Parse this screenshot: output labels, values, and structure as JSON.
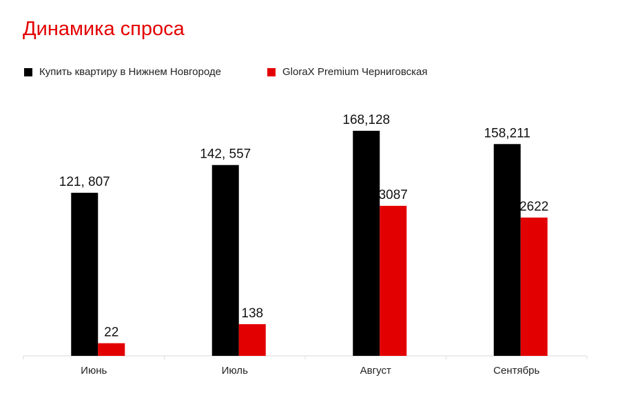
{
  "chart_data": {
    "type": "bar",
    "title": "Динамика спроса",
    "categories": [
      "Июнь",
      "Июль",
      "Август",
      "Сентябрь"
    ],
    "series": [
      {
        "name": "Купить квартиру в Нижнем Новгороде",
        "color": "#000000",
        "values": [
          121807,
          142557,
          168128,
          158211
        ],
        "labels": [
          "121, 807",
          "142, 557",
          "168,128",
          "158,211"
        ]
      },
      {
        "name": "GloraX Premium Черниговская",
        "color": "#e30000",
        "values": [
          22,
          138,
          3087,
          2622
        ],
        "labels": [
          "22",
          "138",
          "3087",
          "2622"
        ]
      }
    ],
    "legend_position": "top-left",
    "grid": false,
    "y_axis_shown": false
  }
}
